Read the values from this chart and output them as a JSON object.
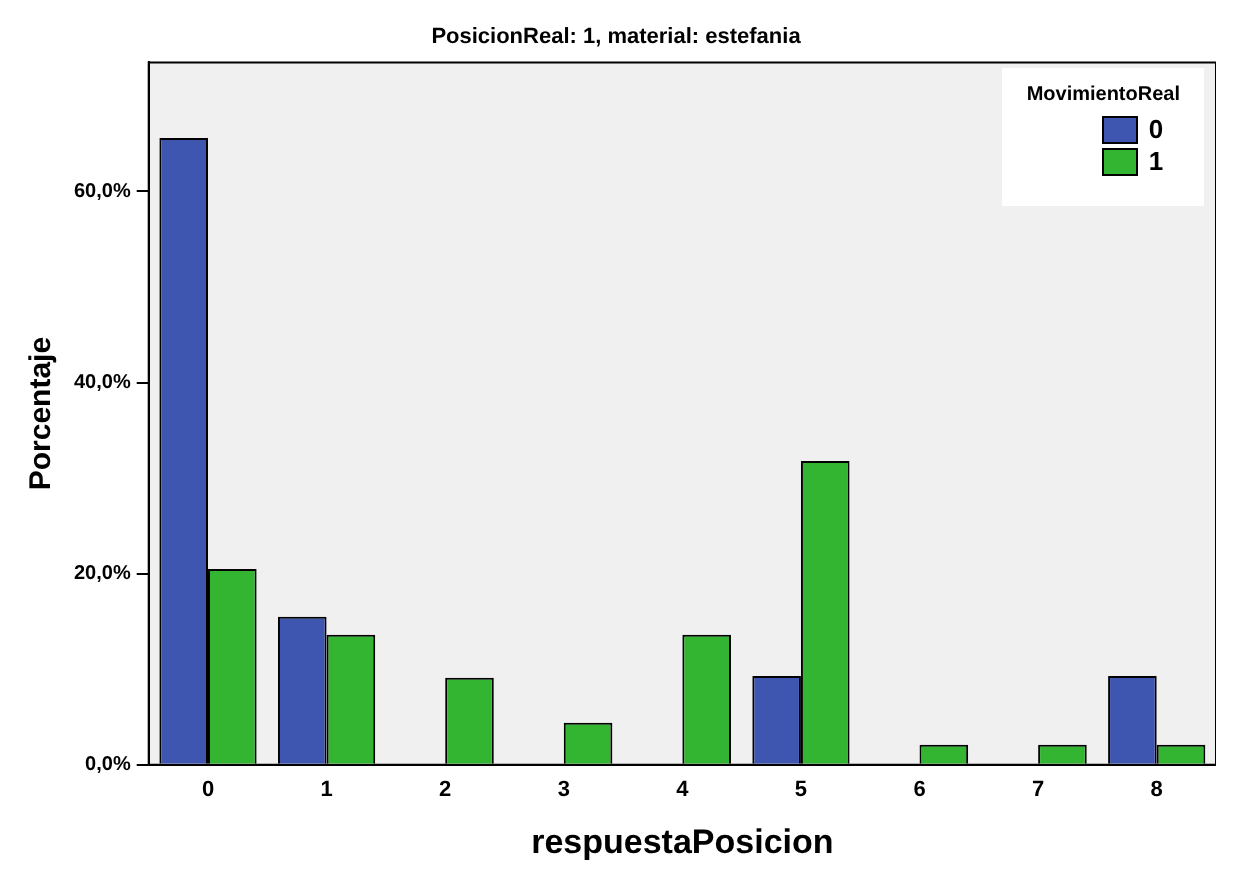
{
  "chart_data": {
    "type": "bar",
    "title": "PosicionReal: 1, material: estefania",
    "xlabel": "respuestaPosicion",
    "ylabel": "Porcentaje",
    "legend_title": "MovimientoReal",
    "legend": "top right",
    "grid": false,
    "categories": [
      "0",
      "1",
      "2",
      "3",
      "4",
      "5",
      "6",
      "7",
      "8"
    ],
    "series": [
      {
        "name": "0",
        "color": "#3f56b0",
        "values": [
          65.6,
          15.5,
          null,
          null,
          null,
          9.3,
          null,
          null,
          9.3
        ]
      },
      {
        "name": "1",
        "color": "#33b531",
        "values": [
          20.5,
          13.6,
          9.1,
          4.4,
          13.6,
          31.8,
          2.1,
          2.1,
          2.1
        ]
      }
    ],
    "ylim": [
      0,
      73.5
    ],
    "yticks": [
      {
        "value": 0,
        "label": "0,0%"
      },
      {
        "value": 20,
        "label": "20,0%"
      },
      {
        "value": 40,
        "label": "40,0%"
      },
      {
        "value": 60,
        "label": "60,0%"
      }
    ]
  }
}
